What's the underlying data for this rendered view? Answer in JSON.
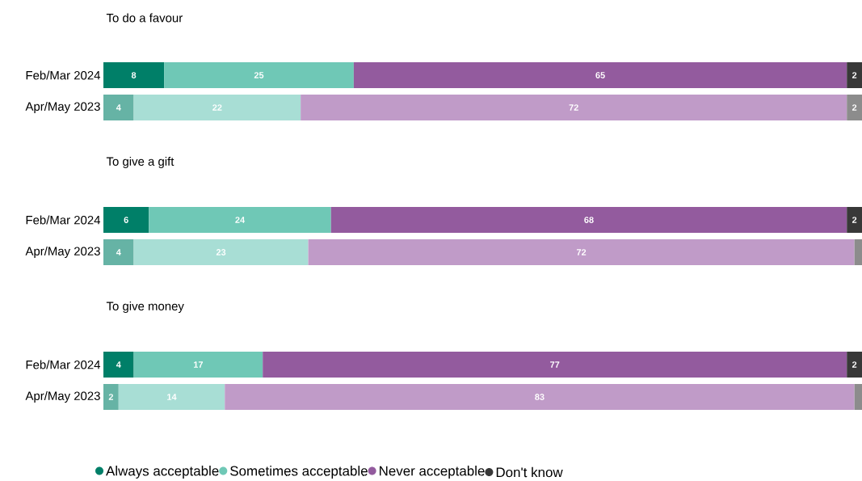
{
  "chart_data": [
    {
      "type": "bar",
      "orientation": "horizontal",
      "stacked": true,
      "title": "To do a favour",
      "categories": [
        "Feb/Mar 2024",
        "Apr/May 2023"
      ],
      "xlim": [
        0,
        100
      ],
      "tick_labels": "y",
      "series": [
        {
          "colors": [
            "#007f68",
            "#66b3a5"
          ],
          "values": [
            8,
            4
          ],
          "value_labels": [
            "8",
            "4"
          ]
        },
        {
          "colors": [
            "#6fc8b6",
            "#a8ded5"
          ],
          "values": [
            25,
            22
          ],
          "value_labels": [
            "25",
            "22"
          ]
        },
        {
          "colors": [
            "#935b9e",
            "#c09bc8"
          ],
          "values": [
            65,
            72
          ],
          "value_labels": [
            "65",
            "72"
          ]
        },
        {
          "colors": [
            "#383838",
            "#8c8c8c"
          ],
          "values": [
            2,
            2
          ],
          "value_labels": [
            "2",
            "2"
          ]
        }
      ]
    },
    {
      "type": "bar",
      "orientation": "horizontal",
      "stacked": true,
      "title": "To give a gift",
      "categories": [
        "Feb/Mar 2024",
        "Apr/May 2023"
      ],
      "xlim": [
        0,
        100
      ],
      "tick_labels": "y",
      "series": [
        {
          "colors": [
            "#007f68",
            "#66b3a5"
          ],
          "values": [
            6,
            4
          ],
          "value_labels": [
            "6",
            "4"
          ]
        },
        {
          "colors": [
            "#6fc8b6",
            "#a8ded5"
          ],
          "values": [
            24,
            23
          ],
          "value_labels": [
            "24",
            "23"
          ]
        },
        {
          "colors": [
            "#935b9e",
            "#c09bc8"
          ],
          "values": [
            68,
            72
          ],
          "value_labels": [
            "68",
            "72"
          ]
        },
        {
          "colors": [
            "#383838",
            "#8c8c8c"
          ],
          "values": [
            2,
            1
          ],
          "value_labels": [
            "2",
            null
          ]
        }
      ]
    },
    {
      "type": "bar",
      "orientation": "horizontal",
      "stacked": true,
      "title": "To give money",
      "categories": [
        "Feb/Mar 2024",
        "Apr/May 2023"
      ],
      "xlim": [
        0,
        100
      ],
      "tick_labels": "y",
      "legend": "bottom",
      "series": [
        {
          "name": "Always acceptable",
          "colors": [
            "#007f68",
            "#66b3a5"
          ],
          "values": [
            4,
            2
          ],
          "value_labels": [
            "4",
            "2"
          ]
        },
        {
          "name": "Sometimes acceptable",
          "colors": [
            "#6fc8b6",
            "#a8ded5"
          ],
          "values": [
            17,
            14
          ],
          "value_labels": [
            "17",
            "14"
          ]
        },
        {
          "name": "Never acceptable",
          "colors": [
            "#935b9e",
            "#c09bc8"
          ],
          "values": [
            77,
            83
          ],
          "value_labels": [
            "77",
            "83"
          ]
        },
        {
          "name": "Don't know",
          "colors": [
            "#383838",
            "#8c8c8c"
          ],
          "values": [
            2,
            1
          ],
          "value_labels": [
            "2",
            null
          ]
        }
      ]
    }
  ]
}
